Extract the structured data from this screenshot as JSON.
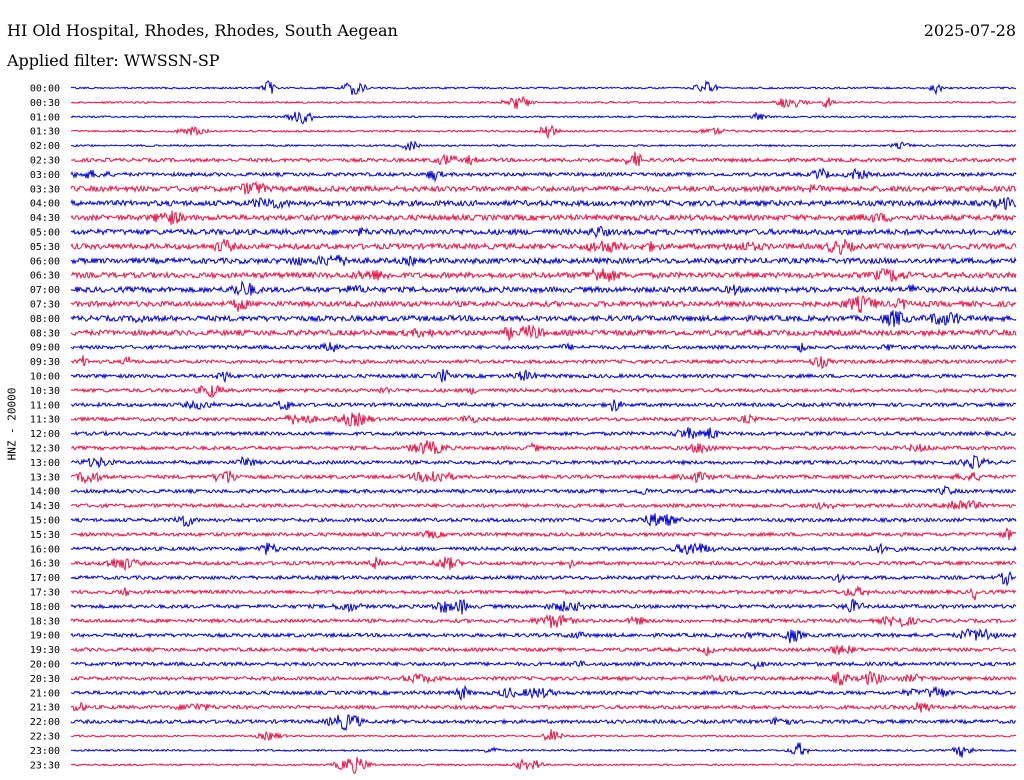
{
  "header": {
    "station": "HI Old Hospital, Rhodes, Rhodes, South Aegean",
    "date": "2025-07-28",
    "filter": "Applied filter: WWSSN-SP"
  },
  "colors": {
    "even_row": "#0000dd",
    "odd_row": "#ee1144",
    "text": "#000000",
    "background": "#ffffff"
  },
  "chart_data": {
    "type": "line",
    "title": "HI Old Hospital, Rhodes, Rhodes, South Aegean",
    "subtitle": "Applied filter: WWSSN-SP",
    "ylabel": "HNZ - 20000",
    "xlabel": "",
    "grid": false,
    "rows": [
      "00:00",
      "00:30",
      "01:00",
      "01:30",
      "02:00",
      "02:30",
      "03:00",
      "03:30",
      "04:00",
      "04:30",
      "05:00",
      "05:30",
      "06:00",
      "06:30",
      "07:00",
      "07:30",
      "08:00",
      "08:30",
      "09:00",
      "09:30",
      "10:00",
      "10:30",
      "11:00",
      "11:30",
      "12:00",
      "12:30",
      "13:00",
      "13:30",
      "14:00",
      "14:30",
      "15:00",
      "15:30",
      "16:00",
      "16:30",
      "17:00",
      "17:30",
      "18:00",
      "18:30",
      "19:00",
      "19:30",
      "20:00",
      "20:30",
      "21:00",
      "21:30",
      "22:00",
      "22:30",
      "23:00",
      "23:30"
    ],
    "row_colors": [
      "blue",
      "red"
    ],
    "noise_level": [
      1,
      1,
      1,
      1,
      1,
      2,
      2,
      3,
      3,
      3,
      3,
      3,
      3,
      3,
      3,
      3,
      3,
      3,
      2,
      2,
      2,
      2,
      2,
      2,
      2,
      2,
      2,
      2,
      2,
      2,
      2,
      2,
      2,
      2,
      2,
      2,
      2,
      2,
      2,
      2,
      2,
      2,
      2,
      2,
      2,
      1,
      1,
      1
    ]
  }
}
